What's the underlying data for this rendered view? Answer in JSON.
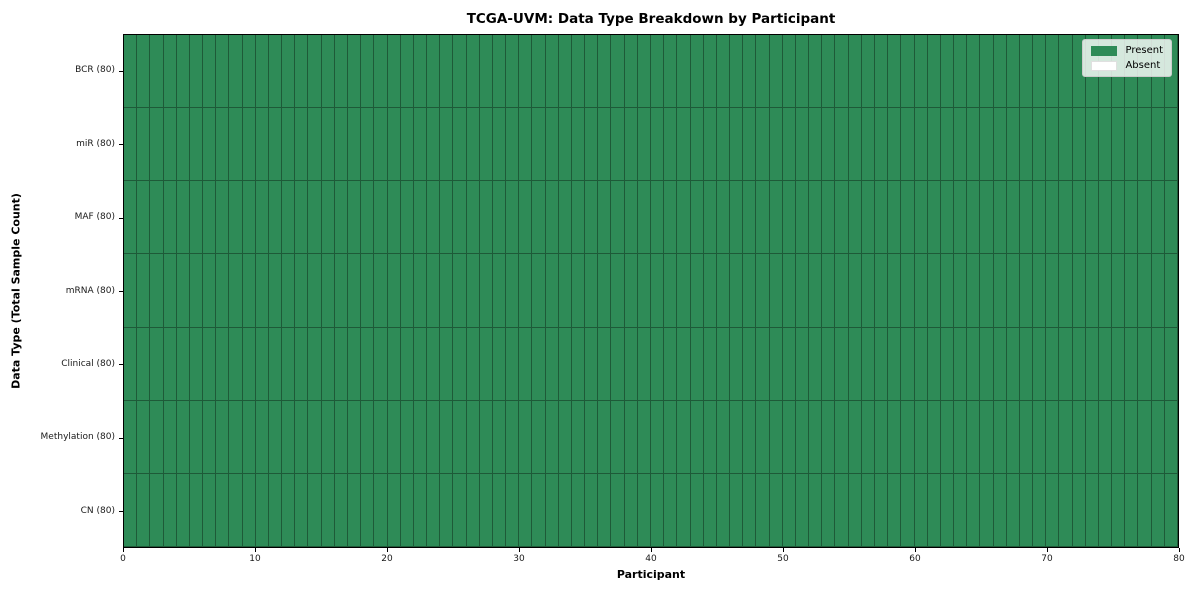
{
  "chart_data": {
    "type": "heatmap",
    "title": "TCGA-UVM: Data Type Breakdown by Participant",
    "xlabel": "Participant",
    "ylabel": "Data Type (Total Sample Count)",
    "x_range": [
      0,
      80
    ],
    "x_ticks": [
      0,
      10,
      20,
      30,
      40,
      50,
      60,
      70,
      80
    ],
    "n_participants": 80,
    "rows": [
      {
        "label": "BCR (80)",
        "data_type": "BCR",
        "total_samples": 80,
        "present_count": 80,
        "absent_count": 0
      },
      {
        "label": "miR (80)",
        "data_type": "miR",
        "total_samples": 80,
        "present_count": 80,
        "absent_count": 0
      },
      {
        "label": "MAF (80)",
        "data_type": "MAF",
        "total_samples": 80,
        "present_count": 80,
        "absent_count": 0
      },
      {
        "label": "mRNA (80)",
        "data_type": "mRNA",
        "total_samples": 80,
        "present_count": 80,
        "absent_count": 0
      },
      {
        "label": "Clinical (80)",
        "data_type": "Clinical",
        "total_samples": 80,
        "present_count": 80,
        "absent_count": 0
      },
      {
        "label": "Methylation (80)",
        "data_type": "Methylation",
        "total_samples": 80,
        "present_count": 80,
        "absent_count": 0
      },
      {
        "label": "CN (80)",
        "data_type": "CN",
        "total_samples": 80,
        "present_count": 80,
        "absent_count": 0
      }
    ],
    "legend": {
      "position": "upper right",
      "entries": [
        {
          "label": "Present",
          "color": "#2e8b57"
        },
        {
          "label": "Absent",
          "color": "#ffffff"
        }
      ]
    },
    "colors": {
      "present": "#2e8b57",
      "absent": "#ffffff",
      "cell_edge": "rgba(0,0,0,0.35)",
      "frame": "#000000"
    },
    "grid_lines": false
  }
}
